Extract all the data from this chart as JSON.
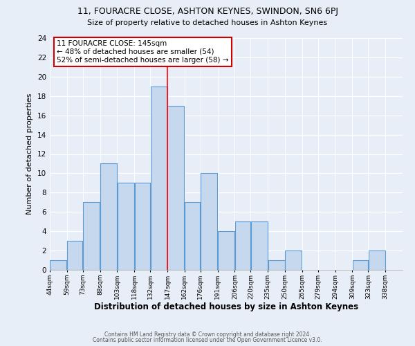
{
  "title1": "11, FOURACRE CLOSE, ASHTON KEYNES, SWINDON, SN6 6PJ",
  "title2": "Size of property relative to detached houses in Ashton Keynes",
  "xlabel": "Distribution of detached houses by size in Ashton Keynes",
  "ylabel": "Number of detached properties",
  "bin_labels": [
    "44sqm",
    "59sqm",
    "73sqm",
    "88sqm",
    "103sqm",
    "118sqm",
    "132sqm",
    "147sqm",
    "162sqm",
    "176sqm",
    "191sqm",
    "206sqm",
    "220sqm",
    "235sqm",
    "250sqm",
    "265sqm",
    "279sqm",
    "294sqm",
    "309sqm",
    "323sqm",
    "338sqm"
  ],
  "bar_values": [
    1,
    3,
    7,
    11,
    9,
    9,
    19,
    17,
    7,
    10,
    4,
    5,
    5,
    1,
    2,
    0,
    0,
    0,
    1,
    2,
    0
  ],
  "bin_edges": [
    44,
    59,
    73,
    88,
    103,
    118,
    132,
    147,
    162,
    176,
    191,
    206,
    220,
    235,
    250,
    265,
    279,
    294,
    309,
    323,
    338,
    353
  ],
  "bar_color": "#c5d8ed",
  "bar_edgecolor": "#5b9bd5",
  "redline_x": 147,
  "ylim": [
    0,
    24
  ],
  "yticks": [
    0,
    2,
    4,
    6,
    8,
    10,
    12,
    14,
    16,
    18,
    20,
    22,
    24
  ],
  "annotation_title": "11 FOURACRE CLOSE: 145sqm",
  "annotation_line1": "← 48% of detached houses are smaller (54)",
  "annotation_line2": "52% of semi-detached houses are larger (58) →",
  "footer1": "Contains HM Land Registry data © Crown copyright and database right 2024.",
  "footer2": "Contains public sector information licensed under the Open Government Licence v3.0.",
  "bg_color": "#e8eef7",
  "plot_bg_color": "#e8eef7",
  "annotation_box_color": "#ffffff",
  "annotation_box_edgecolor": "#cc0000"
}
